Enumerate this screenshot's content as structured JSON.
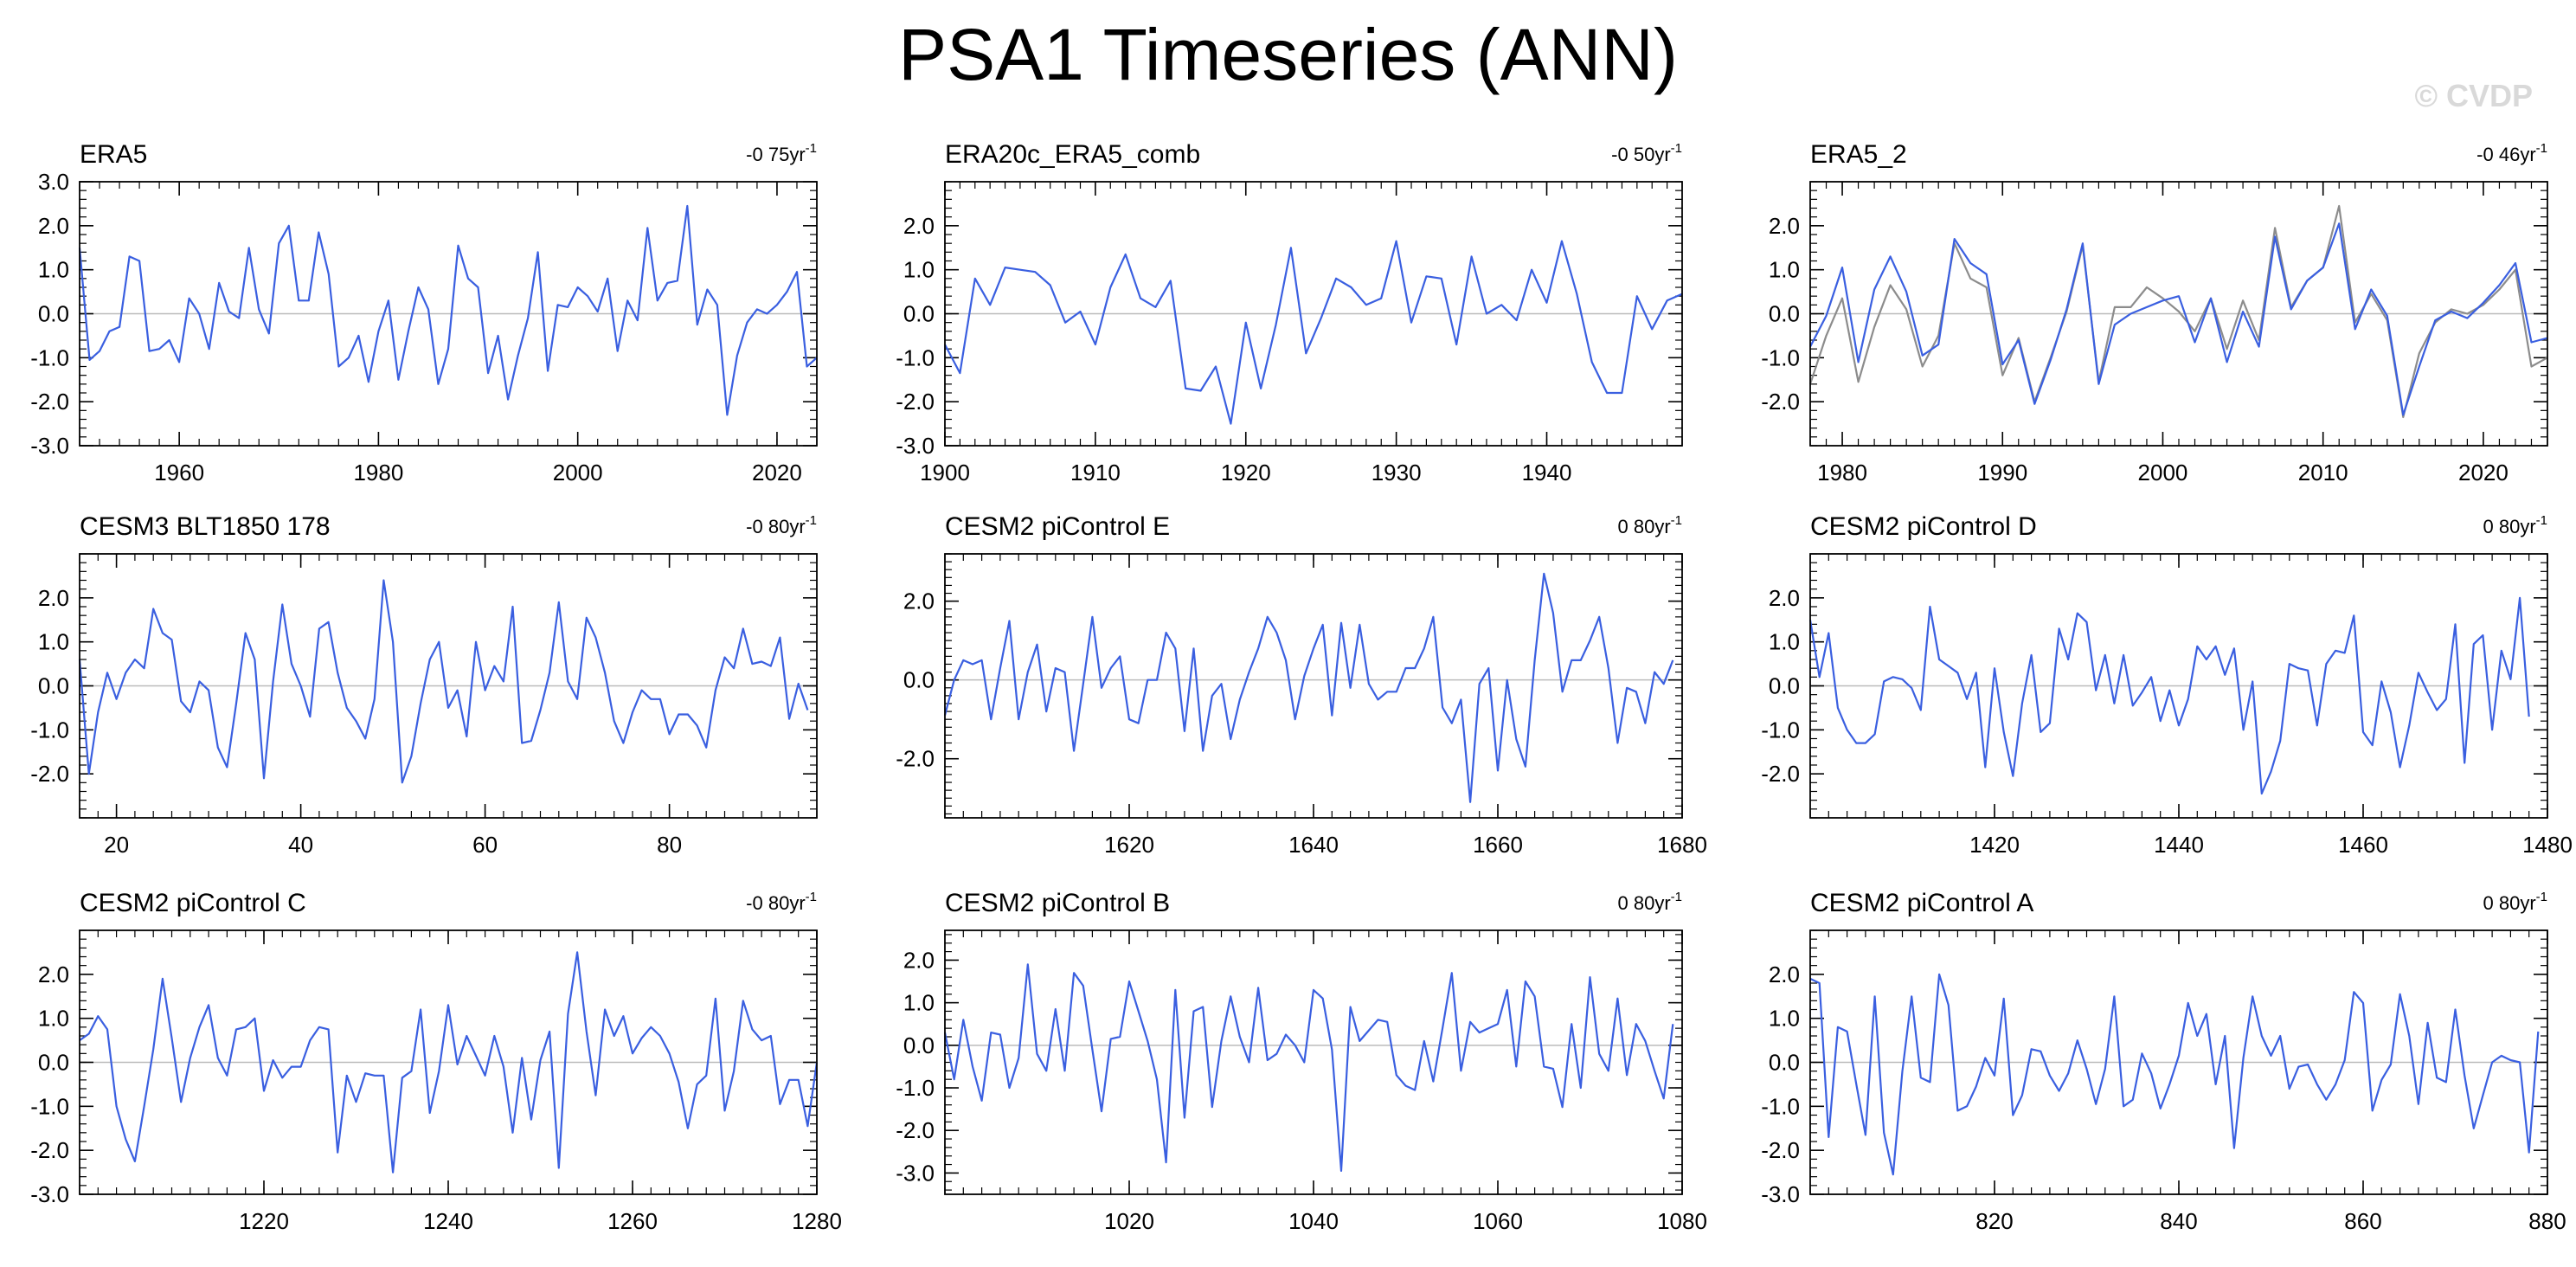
{
  "title": "PSA1 Timeseries (ANN)",
  "watermark": "© CVDP",
  "colors": {
    "primary": "#3a5fe0",
    "secondary": "#8c8c8c",
    "axis": "#000000",
    "zero_line": "#bbbbbb"
  },
  "chart_data": [
    {
      "type": "line",
      "title": "ERA5",
      "trend_value": "-0 75",
      "trend_unit": "yr",
      "trend_exp": "-1",
      "xlim": [
        1950,
        2024
      ],
      "ylim": [
        -3,
        3
      ],
      "yticks": [
        -3,
        -2,
        -1,
        0,
        1,
        2,
        3
      ],
      "ytick_labels": [
        "-3.0",
        "-2.0",
        "-1.0",
        "0.0",
        "1.0",
        "2.0",
        "3.0"
      ],
      "xticks": [
        1960,
        1980,
        2000,
        2020
      ],
      "xtick_labels": [
        "1960",
        "1980",
        "2000",
        "2020"
      ],
      "series": [
        {
          "x_start": 1950,
          "x_step": 1,
          "values": [
            1.5,
            -1.05,
            -0.85,
            -0.4,
            -0.3,
            1.3,
            1.2,
            -0.85,
            -0.8,
            -0.6,
            -1.1,
            0.35,
            0.0,
            -0.8,
            0.7,
            0.05,
            -0.1,
            1.5,
            0.1,
            -0.45,
            1.6,
            2.0,
            0.3,
            0.3,
            1.85,
            0.9,
            -1.2,
            -1.0,
            -0.5,
            -1.55,
            -0.4,
            0.3,
            -1.5,
            -0.4,
            0.6,
            0.1,
            -1.6,
            -0.8,
            1.55,
            0.8,
            0.6,
            -1.35,
            -0.5,
            -1.95,
            -0.95,
            -0.1,
            1.4,
            -1.3,
            0.2,
            0.15,
            0.6,
            0.4,
            0.05,
            0.8,
            -0.85,
            0.3,
            -0.15,
            1.95,
            0.3,
            0.7,
            0.75,
            2.45,
            -0.25,
            0.55,
            0.2,
            -2.3,
            -0.95,
            -0.2,
            0.1,
            0.0,
            0.2,
            0.5,
            0.95,
            -1.2,
            -1.0
          ]
        }
      ]
    },
    {
      "type": "line",
      "title": "ERA20c_ERA5_comb",
      "trend_value": "-0 50",
      "trend_unit": "yr",
      "trend_exp": "-1",
      "xlim": [
        1900,
        1949
      ],
      "ylim": [
        -3,
        3
      ],
      "yticks": [
        -3,
        -2,
        -1,
        0,
        1,
        2
      ],
      "ytick_labels": [
        "-3.0",
        "-2.0",
        "-1.0",
        "0.0",
        "1.0",
        "2.0"
      ],
      "xticks": [
        1900,
        1910,
        1920,
        1930,
        1940
      ],
      "xtick_labels": [
        "1900",
        "1910",
        "1920",
        "1930",
        "1940"
      ],
      "series": [
        {
          "x_start": 1900,
          "x_step": 1,
          "values": [
            -0.7,
            -1.35,
            0.8,
            0.2,
            1.05,
            1.0,
            0.95,
            0.65,
            -0.2,
            0.05,
            -0.7,
            0.6,
            1.35,
            0.35,
            0.15,
            0.75,
            -1.7,
            -1.75,
            -1.2,
            -2.5,
            -0.2,
            -1.7,
            -0.25,
            1.5,
            -0.9,
            -0.1,
            0.8,
            0.6,
            0.2,
            0.35,
            1.65,
            -0.2,
            0.85,
            0.8,
            -0.7,
            1.3,
            0.0,
            0.2,
            -0.15,
            1.0,
            0.25,
            1.65,
            0.45,
            -1.1,
            -1.8,
            -1.8,
            0.4,
            -0.35,
            0.3,
            0.45
          ]
        }
      ]
    },
    {
      "type": "line",
      "title": "ERA5_2",
      "trend_value": "-0 46",
      "trend_unit": "yr",
      "trend_exp": "-1",
      "xlim": [
        1978,
        2024
      ],
      "ylim": [
        -3,
        3
      ],
      "yticks": [
        -2,
        -1,
        0,
        1,
        2
      ],
      "ytick_labels": [
        "-2.0",
        "-1.0",
        "0.0",
        "1.0",
        "2.0"
      ],
      "xticks": [
        1980,
        1990,
        2000,
        2010,
        2020
      ],
      "xtick_labels": [
        "1980",
        "1990",
        "2000",
        "2010",
        "2020"
      ],
      "series": [
        {
          "x_start": 1978,
          "x_step": 1,
          "values": [
            -0.75,
            -0.05,
            1.05,
            -1.1,
            0.55,
            1.3,
            0.5,
            -0.95,
            -0.7,
            1.7,
            1.15,
            0.9,
            -1.15,
            -0.6,
            -2.05,
            -1.05,
            0.1,
            1.6,
            -1.6,
            -0.25,
            0.0,
            0.15,
            0.3,
            0.4,
            -0.65,
            0.35,
            -1.1,
            0.05,
            -0.75,
            1.75,
            0.1,
            0.75,
            1.05,
            2.05,
            -0.35,
            0.55,
            -0.05,
            -2.3,
            -1.2,
            -0.15,
            0.05,
            -0.1,
            0.25,
            0.65,
            1.15,
            -0.65,
            -0.55
          ]
        },
        {
          "x_start": 1978,
          "x_step": 1,
          "values": [
            -1.6,
            -0.5,
            0.35,
            -1.55,
            -0.3,
            0.65,
            0.1,
            -1.2,
            -0.5,
            1.6,
            0.8,
            0.6,
            -1.4,
            -0.55,
            -2.0,
            -1.0,
            0.05,
            1.55,
            -1.55,
            0.15,
            0.15,
            0.6,
            0.35,
            0.05,
            -0.4,
            0.35,
            -0.8,
            0.3,
            -0.6,
            1.95,
            0.15,
            0.75,
            1.05,
            2.45,
            -0.2,
            0.45,
            -0.15,
            -2.35,
            -0.9,
            -0.2,
            0.1,
            0.0,
            0.2,
            0.55,
            1.0,
            -1.2,
            -1.0
          ]
        }
      ]
    },
    {
      "type": "line",
      "title": "CESM3 BLT1850 178",
      "trend_value": "-0 80",
      "trend_unit": "yr",
      "trend_exp": "-1",
      "xlim": [
        16,
        96
      ],
      "ylim": [
        -3,
        3
      ],
      "yticks": [
        -2,
        -1,
        0,
        1,
        2
      ],
      "ytick_labels": [
        "-2.0",
        "-1.0",
        "0.0",
        "1.0",
        "2.0"
      ],
      "xticks": [
        20,
        40,
        60,
        80
      ],
      "xtick_labels": [
        "20",
        "40",
        "60",
        "80"
      ],
      "series": [
        {
          "x_start": 16,
          "x_step": 1,
          "values": [
            0.6,
            -2.0,
            -0.6,
            0.3,
            -0.3,
            0.3,
            0.6,
            0.4,
            1.75,
            1.2,
            1.05,
            -0.35,
            -0.6,
            0.1,
            -0.1,
            -1.4,
            -1.85,
            -0.4,
            1.2,
            0.6,
            -2.1,
            0.1,
            1.85,
            0.5,
            0.0,
            -0.7,
            1.3,
            1.45,
            0.3,
            -0.5,
            -0.8,
            -1.2,
            -0.3,
            2.4,
            1.0,
            -2.2,
            -1.6,
            -0.4,
            0.6,
            1.0,
            -0.5,
            -0.1,
            -1.15,
            1.0,
            -0.1,
            0.45,
            0.1,
            1.8,
            -1.3,
            -1.25,
            -0.55,
            0.3,
            1.9,
            0.1,
            -0.3,
            1.55,
            1.1,
            0.3,
            -0.8,
            -1.3,
            -0.6,
            -0.1,
            -0.3,
            -0.3,
            -1.1,
            -0.65,
            -0.65,
            -0.9,
            -1.4,
            -0.1,
            0.65,
            0.4,
            1.3,
            0.5,
            0.55,
            0.45,
            1.1,
            -0.75,
            0.05,
            -0.55
          ]
        }
      ]
    },
    {
      "type": "line",
      "title": "CESM2 piControl E",
      "trend_value": "0 80",
      "trend_unit": "yr",
      "trend_exp": "-1",
      "xlim": [
        1600,
        1680
      ],
      "ylim": [
        -3.5,
        3.2
      ],
      "yticks": [
        -2,
        0,
        2
      ],
      "ytick_labels": [
        "-2.0",
        "0.0",
        "2.0"
      ],
      "xticks": [
        1620,
        1640,
        1660,
        1680
      ],
      "xtick_labels": [
        "1620",
        "1640",
        "1660",
        "1680"
      ],
      "series": [
        {
          "x_start": 1600,
          "x_step": 1,
          "values": [
            -0.9,
            0.0,
            0.5,
            0.4,
            0.5,
            -1.0,
            0.3,
            1.5,
            -1.0,
            0.2,
            0.9,
            -0.8,
            0.3,
            0.2,
            -1.8,
            -0.1,
            1.6,
            -0.2,
            0.3,
            0.6,
            -1.0,
            -1.1,
            0.0,
            0.0,
            1.2,
            0.8,
            -1.3,
            0.8,
            -1.8,
            -0.4,
            -0.1,
            -1.5,
            -0.5,
            0.2,
            0.8,
            1.6,
            1.2,
            0.5,
            -1.0,
            0.1,
            0.8,
            1.4,
            -0.9,
            1.45,
            -0.2,
            1.4,
            -0.1,
            -0.5,
            -0.3,
            -0.3,
            0.3,
            0.3,
            0.8,
            1.6,
            -0.7,
            -1.1,
            -0.5,
            -3.1,
            -0.1,
            0.3,
            -2.3,
            0.0,
            -1.5,
            -2.2,
            0.5,
            2.7,
            1.7,
            -0.3,
            0.5,
            0.5,
            1.0,
            1.6,
            0.3,
            -1.6,
            -0.2,
            -0.3,
            -1.1,
            0.2,
            -0.1,
            0.5
          ]
        }
      ]
    },
    {
      "type": "line",
      "title": "CESM2 piControl D",
      "trend_value": "0 80",
      "trend_unit": "yr",
      "trend_exp": "-1",
      "xlim": [
        1400,
        1480
      ],
      "ylim": [
        -3,
        3
      ],
      "yticks": [
        -2,
        -1,
        0,
        1,
        2
      ],
      "ytick_labels": [
        "-2.0",
        "-1.0",
        "0.0",
        "1.0",
        "2.0"
      ],
      "xticks": [
        1420,
        1440,
        1460,
        1480
      ],
      "xtick_labels": [
        "1420",
        "1440",
        "1460",
        "1480"
      ],
      "series": [
        {
          "x_start": 1400,
          "x_step": 1,
          "values": [
            1.5,
            0.2,
            1.2,
            -0.5,
            -1.0,
            -1.3,
            -1.3,
            -1.1,
            0.1,
            0.2,
            0.15,
            -0.05,
            -0.55,
            1.8,
            0.6,
            0.45,
            0.3,
            -0.3,
            0.3,
            -1.85,
            0.4,
            -1.05,
            -2.05,
            -0.4,
            0.7,
            -1.05,
            -0.85,
            1.3,
            0.6,
            1.65,
            1.45,
            -0.1,
            0.7,
            -0.4,
            0.7,
            -0.45,
            -0.15,
            0.2,
            -0.8,
            -0.1,
            -0.9,
            -0.3,
            0.9,
            0.6,
            0.9,
            0.25,
            0.85,
            -1.0,
            0.1,
            -2.45,
            -1.95,
            -1.25,
            0.5,
            0.4,
            0.35,
            -0.9,
            0.5,
            0.8,
            0.75,
            1.6,
            -1.05,
            -1.35,
            0.1,
            -0.6,
            -1.85,
            -0.9,
            0.3,
            -0.15,
            -0.55,
            -0.3,
            1.4,
            -1.75,
            0.95,
            1.15,
            -1.0,
            0.8,
            0.15,
            2.0,
            -0.7
          ]
        }
      ]
    },
    {
      "type": "line",
      "title": "CESM2 piControl C",
      "trend_value": "-0 80",
      "trend_unit": "yr",
      "trend_exp": "-1",
      "xlim": [
        1200,
        1280
      ],
      "ylim": [
        -3,
        3
      ],
      "yticks": [
        -3,
        -2,
        -1,
        0,
        1,
        2
      ],
      "ytick_labels": [
        "-3.0",
        "-2.0",
        "-1.0",
        "0.0",
        "1.0",
        "2.0"
      ],
      "xticks": [
        1220,
        1240,
        1260,
        1280
      ],
      "xtick_labels": [
        "1220",
        "1240",
        "1260",
        "1280"
      ],
      "series": [
        {
          "x_start": 1200,
          "x_step": 1,
          "values": [
            0.5,
            0.65,
            1.05,
            0.75,
            -1.0,
            -1.75,
            -2.25,
            -1.0,
            0.3,
            1.9,
            0.55,
            -0.9,
            0.1,
            0.8,
            1.3,
            0.1,
            -0.3,
            0.75,
            0.8,
            1.0,
            -0.65,
            0.05,
            -0.35,
            -0.1,
            -0.1,
            0.5,
            0.8,
            0.75,
            -2.05,
            -0.3,
            -0.9,
            -0.25,
            -0.3,
            -0.3,
            -2.5,
            -0.35,
            -0.2,
            1.2,
            -1.15,
            -0.2,
            1.3,
            -0.05,
            0.6,
            0.15,
            -0.3,
            0.6,
            -0.1,
            -1.6,
            0.1,
            -1.3,
            0.05,
            0.7,
            -2.4,
            1.1,
            2.5,
            0.7,
            -0.75,
            1.2,
            0.6,
            1.05,
            0.2,
            0.55,
            0.8,
            0.6,
            0.2,
            -0.45,
            -1.5,
            -0.5,
            -0.3,
            1.45,
            -1.1,
            -0.2,
            1.4,
            0.75,
            0.5,
            0.6,
            -0.95,
            -0.4,
            -0.4,
            -1.45,
            0.0
          ]
        }
      ]
    },
    {
      "type": "line",
      "title": "CESM2 piControl B",
      "trend_value": "0 80",
      "trend_unit": "yr",
      "trend_exp": "-1",
      "xlim": [
        1000,
        1080
      ],
      "ylim": [
        -3.5,
        2.7
      ],
      "yticks": [
        -3,
        -2,
        -1,
        0,
        1,
        2
      ],
      "ytick_labels": [
        "-3.0",
        "-2.0",
        "-1.0",
        "0.0",
        "1.0",
        "2.0"
      ],
      "xticks": [
        1020,
        1040,
        1060,
        1080
      ],
      "xtick_labels": [
        "1020",
        "1040",
        "1060",
        "1080"
      ],
      "series": [
        {
          "x_start": 1000,
          "x_step": 1,
          "values": [
            0.3,
            -0.8,
            0.6,
            -0.5,
            -1.3,
            0.3,
            0.25,
            -1.0,
            -0.3,
            1.9,
            -0.2,
            -0.6,
            0.85,
            -0.6,
            1.7,
            1.4,
            -0.1,
            -1.55,
            0.15,
            0.2,
            1.5,
            0.8,
            0.1,
            -0.8,
            -2.75,
            1.3,
            -1.7,
            0.8,
            0.9,
            -1.45,
            0.1,
            1.15,
            0.2,
            -0.4,
            1.35,
            -0.35,
            -0.2,
            0.25,
            0.0,
            -0.4,
            1.3,
            1.1,
            -0.1,
            -2.95,
            0.9,
            0.1,
            0.35,
            0.6,
            0.55,
            -0.7,
            -0.95,
            -1.05,
            0.1,
            -0.85,
            0.4,
            1.7,
            -0.6,
            0.55,
            0.3,
            0.4,
            0.5,
            1.3,
            -0.5,
            1.5,
            1.15,
            -0.5,
            -0.55,
            -1.45,
            0.5,
            -1.0,
            1.6,
            -0.2,
            -0.6,
            1.1,
            -0.7,
            0.5,
            0.1,
            -0.6,
            -1.25,
            0.5
          ]
        }
      ]
    },
    {
      "type": "line",
      "title": "CESM2 piControl A",
      "trend_value": "0 80",
      "trend_unit": "yr",
      "trend_exp": "-1",
      "xlim": [
        800,
        880
      ],
      "ylim": [
        -3,
        3
      ],
      "yticks": [
        -3,
        -2,
        -1,
        0,
        1,
        2
      ],
      "ytick_labels": [
        "-3.0",
        "-2.0",
        "-1.0",
        "0.0",
        "1.0",
        "2.0"
      ],
      "xticks": [
        820,
        840,
        860,
        880
      ],
      "xtick_labels": [
        "820",
        "840",
        "860",
        "880"
      ],
      "series": [
        {
          "x_start": 800,
          "x_step": 1,
          "values": [
            1.9,
            1.8,
            -1.7,
            0.8,
            0.7,
            -0.5,
            -1.65,
            1.5,
            -1.6,
            -2.55,
            -0.2,
            1.5,
            -0.35,
            -0.45,
            2.0,
            1.3,
            -1.1,
            -1.0,
            -0.55,
            0.1,
            -0.3,
            1.45,
            -1.2,
            -0.75,
            0.3,
            0.25,
            -0.3,
            -0.65,
            -0.25,
            0.5,
            -0.15,
            -0.95,
            -0.15,
            1.5,
            -1.0,
            -0.85,
            0.2,
            -0.25,
            -1.05,
            -0.5,
            0.15,
            1.35,
            0.6,
            1.1,
            -0.5,
            0.6,
            -1.95,
            0.1,
            1.5,
            0.6,
            0.15,
            0.6,
            -0.6,
            -0.1,
            -0.05,
            -0.5,
            -0.85,
            -0.5,
            0.05,
            1.6,
            1.35,
            -1.1,
            -0.4,
            -0.05,
            1.55,
            0.6,
            -0.95,
            0.9,
            -0.35,
            -0.45,
            1.2,
            -0.3,
            -1.5,
            -0.75,
            0.0,
            0.15,
            0.05,
            0.0,
            -2.05,
            0.7
          ]
        }
      ]
    }
  ]
}
